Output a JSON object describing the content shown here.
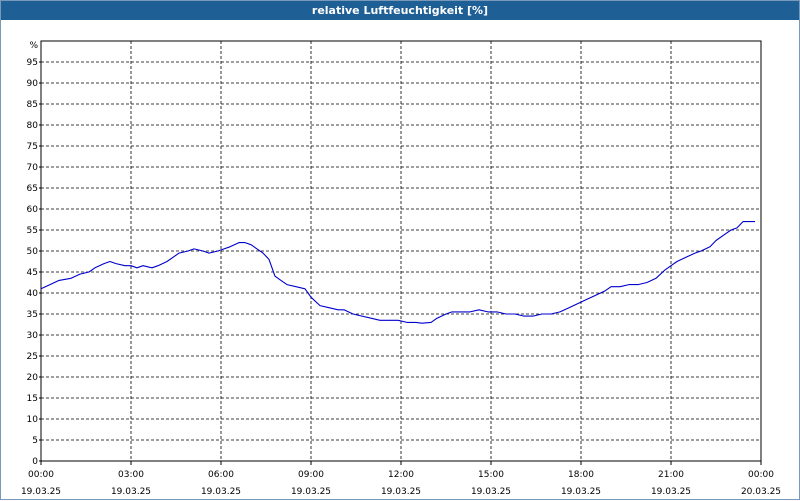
{
  "window": {
    "title": "relative Luftfeuchtigkeit [%]"
  },
  "chart_data": {
    "type": "line",
    "title": "relative Luftfeuchtigkeit [%]",
    "ylabel": "%",
    "xlabel": "",
    "ylim": [
      0,
      100
    ],
    "xlim": [
      0,
      24
    ],
    "grid": true,
    "colors": {
      "line": "#0000cc",
      "grid": "#000000",
      "titlebar": "#1e5f96"
    },
    "y_ticks": [
      0,
      5,
      10,
      15,
      20,
      25,
      30,
      35,
      40,
      45,
      50,
      55,
      60,
      65,
      70,
      75,
      80,
      85,
      90,
      95
    ],
    "x_ticks": [
      {
        "time": "00:00",
        "date": "19.03.25"
      },
      {
        "time": "03:00",
        "date": "19.03.25"
      },
      {
        "time": "06:00",
        "date": "19.03.25"
      },
      {
        "time": "09:00",
        "date": "19.03.25"
      },
      {
        "time": "12:00",
        "date": "19.03.25"
      },
      {
        "time": "15:00",
        "date": "19.03.25"
      },
      {
        "time": "18:00",
        "date": "19.03.25"
      },
      {
        "time": "21:00",
        "date": "19.03.25"
      },
      {
        "time": "00:00",
        "date": "20.03.25"
      }
    ],
    "series": [
      {
        "x": [
          0.0,
          0.3,
          0.6,
          1.0,
          1.3,
          1.6,
          1.8,
          2.1,
          2.3,
          2.5,
          2.8,
          3.0,
          3.2,
          3.4,
          3.7,
          3.9,
          4.2,
          4.4,
          4.6,
          4.9,
          5.1,
          5.4,
          5.6,
          5.9,
          6.1,
          6.3,
          6.6,
          6.8,
          7.0,
          7.2,
          7.4,
          7.6,
          7.8,
          8.0,
          8.2,
          8.5,
          8.8,
          9.0,
          9.3,
          9.6,
          9.9,
          10.1,
          10.4,
          10.7,
          11.0,
          11.3,
          11.6,
          11.9,
          12.2,
          12.5,
          12.7,
          13.0,
          13.2,
          13.5,
          13.7,
          14.0,
          14.3,
          14.6,
          14.9,
          15.2,
          15.5,
          15.8,
          16.1,
          16.4,
          16.7,
          17.0,
          17.3,
          17.6,
          17.9,
          18.2,
          18.5,
          18.8,
          19.0,
          19.3,
          19.6,
          19.9,
          20.2,
          20.5,
          20.8,
          21.0,
          21.2,
          21.5,
          21.8,
          22.0,
          22.3,
          22.5,
          22.8,
          23.0,
          23.2,
          23.4,
          23.6,
          23.8
        ],
        "y": [
          41,
          42,
          43,
          43.5,
          44.5,
          45,
          46,
          47,
          47.5,
          47,
          46.5,
          46.5,
          46,
          46.5,
          46,
          46.5,
          47.5,
          48.5,
          49.5,
          50,
          50.5,
          50,
          49.5,
          50,
          50.5,
          51,
          52,
          52,
          51.5,
          50.5,
          49.5,
          48,
          44,
          43,
          42,
          41.5,
          41,
          39,
          37,
          36.5,
          36,
          36,
          35,
          34.5,
          34,
          33.5,
          33.5,
          33.5,
          33,
          33,
          32.8,
          33,
          34,
          35,
          35.5,
          35.5,
          35.5,
          36,
          35.5,
          35.5,
          35,
          35,
          34.5,
          34.5,
          35,
          35,
          35.5,
          36.5,
          37.5,
          38.5,
          39.5,
          40.5,
          41.5,
          41.5,
          42,
          42,
          42.5,
          43.5,
          45.5,
          46.5,
          47.5,
          48.5,
          49.5,
          50,
          51,
          52.5,
          54,
          55,
          55.5,
          57,
          57,
          57
        ]
      }
    ]
  }
}
